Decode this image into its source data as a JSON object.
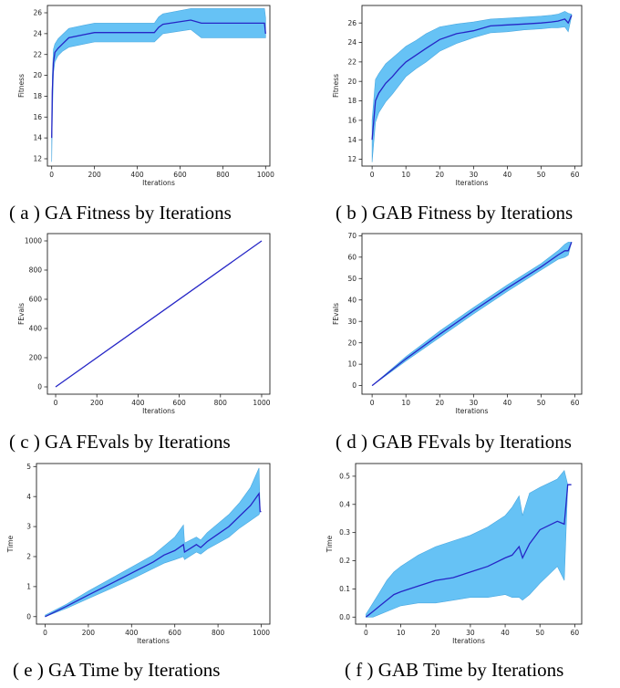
{
  "captions": {
    "a": "( a ) GA Fitness by Iterations",
    "b": "( b ) GAB Fitness by Iterations",
    "c": "( c ) GA FEvals by Iterations",
    "d": "( d ) GAB FEvals by Iterations",
    "e": "( e ) GA Time by Iterations",
    "f": "( f ) GAB Time by Iterations"
  },
  "colors": {
    "band": "#66c2f5",
    "line": "#2626c6",
    "axis": "#222222"
  },
  "chart_data": [
    {
      "id": "a",
      "type": "line",
      "xlabel": "Iterations",
      "ylabel": "Fitness",
      "xlim": [
        -20,
        1020
      ],
      "ylim": [
        11.3,
        26.7
      ],
      "xticks": [
        0,
        200,
        400,
        600,
        800,
        1000
      ],
      "yticks": [
        12,
        14,
        16,
        18,
        20,
        22,
        24,
        26
      ],
      "series": [
        {
          "x": [
            0,
            3,
            8,
            15,
            30,
            50,
            80,
            150,
            200,
            300,
            480,
            500,
            520,
            650,
            700,
            800,
            900,
            995,
            1000
          ],
          "mean": [
            14,
            18.5,
            21.2,
            22.2,
            22.6,
            23.0,
            23.6,
            23.9,
            24.1,
            24.1,
            24.1,
            24.6,
            24.9,
            25.3,
            25.0,
            25.0,
            25.0,
            25.0,
            24.0
          ],
          "upper": [
            14.5,
            20,
            22.5,
            23.0,
            23.5,
            23.9,
            24.5,
            24.8,
            25.0,
            25.0,
            25.0,
            25.6,
            25.9,
            26.4,
            26.4,
            26.4,
            26.4,
            26.4,
            25.5
          ],
          "lower": [
            11.7,
            16,
            20.2,
            21.3,
            21.9,
            22.3,
            22.7,
            23.0,
            23.2,
            23.2,
            23.2,
            23.6,
            24.0,
            24.4,
            23.6,
            23.6,
            23.6,
            23.6,
            23.6
          ]
        }
      ]
    },
    {
      "id": "b",
      "type": "line",
      "xlabel": "Iterations",
      "ylabel": "Fitness",
      "xlim": [
        -3,
        62
      ],
      "ylim": [
        11.3,
        27.8
      ],
      "xticks": [
        0,
        10,
        20,
        30,
        40,
        50,
        60
      ],
      "yticks": [
        12,
        14,
        16,
        18,
        20,
        22,
        24,
        26
      ],
      "series": [
        {
          "x": [
            0,
            1,
            2,
            4,
            6,
            8,
            10,
            13,
            16,
            20,
            25,
            30,
            35,
            40,
            45,
            50,
            53,
            55,
            57,
            58,
            59
          ],
          "mean": [
            14,
            18,
            18.8,
            19.8,
            20.5,
            21.3,
            22.0,
            22.7,
            23.4,
            24.3,
            24.9,
            25.2,
            25.7,
            25.8,
            25.9,
            26.0,
            26.1,
            26.2,
            26.4,
            26.0,
            26.8
          ],
          "upper": [
            16,
            20.2,
            20.8,
            21.8,
            22.4,
            23.0,
            23.6,
            24.2,
            24.9,
            25.6,
            25.9,
            26.1,
            26.4,
            26.5,
            26.6,
            26.7,
            26.8,
            26.9,
            27.2,
            27.0,
            26.9
          ],
          "lower": [
            11.7,
            15.8,
            16.8,
            17.9,
            18.7,
            19.6,
            20.5,
            21.3,
            22.0,
            23.1,
            23.9,
            24.5,
            25.0,
            25.1,
            25.3,
            25.4,
            25.5,
            25.5,
            25.6,
            25.1,
            26.7
          ]
        }
      ]
    },
    {
      "id": "c",
      "type": "line",
      "xlabel": "Iterations",
      "ylabel": "FEvals",
      "xlim": [
        -40,
        1040
      ],
      "ylim": [
        -50,
        1050
      ],
      "xticks": [
        0,
        200,
        400,
        600,
        800,
        1000
      ],
      "yticks": [
        0,
        200,
        400,
        600,
        800,
        1000
      ],
      "series": [
        {
          "x": [
            0,
            1000
          ],
          "mean": [
            0,
            1000
          ],
          "upper": [
            0,
            1000
          ],
          "lower": [
            0,
            1000
          ]
        }
      ]
    },
    {
      "id": "d",
      "type": "line",
      "xlabel": "Iterations",
      "ylabel": "FEvals",
      "xlim": [
        -3,
        62
      ],
      "ylim": [
        -4,
        71
      ],
      "xticks": [
        0,
        10,
        20,
        30,
        40,
        50,
        60
      ],
      "yticks": [
        0,
        10,
        20,
        30,
        40,
        50,
        60,
        70
      ],
      "series": [
        {
          "x": [
            0,
            10,
            20,
            30,
            40,
            50,
            55,
            57,
            58,
            59
          ],
          "mean": [
            0,
            12.5,
            24,
            35,
            45.5,
            55.5,
            61,
            63,
            63,
            67
          ],
          "upper": [
            0,
            13.5,
            25.5,
            36.5,
            47,
            57,
            63,
            66,
            67,
            67
          ],
          "lower": [
            0,
            11.5,
            22.5,
            33.5,
            44,
            54,
            59,
            60,
            61,
            67
          ]
        }
      ]
    },
    {
      "id": "e",
      "type": "line",
      "xlabel": "Iterations",
      "ylabel": "Time",
      "xlim": [
        -40,
        1040
      ],
      "ylim": [
        -0.25,
        5.1
      ],
      "xticks": [
        0,
        200,
        400,
        600,
        800,
        1000
      ],
      "yticks": [
        0,
        1,
        2,
        3,
        4,
        5
      ],
      "series": [
        {
          "x": [
            0,
            100,
            200,
            300,
            400,
            500,
            550,
            600,
            640,
            645,
            700,
            720,
            750,
            800,
            850,
            900,
            950,
            990,
            995,
            1000
          ],
          "mean": [
            0,
            0.35,
            0.72,
            1.08,
            1.45,
            1.82,
            2.05,
            2.2,
            2.4,
            2.15,
            2.4,
            2.3,
            2.5,
            2.75,
            3.0,
            3.35,
            3.7,
            4.1,
            3.5,
            3.5
          ],
          "upper": [
            0.05,
            0.42,
            0.85,
            1.25,
            1.65,
            2.05,
            2.35,
            2.65,
            3.05,
            2.45,
            2.65,
            2.55,
            2.8,
            3.1,
            3.4,
            3.8,
            4.3,
            4.95,
            3.5,
            3.5
          ],
          "lower": [
            0,
            0.28,
            0.6,
            0.92,
            1.25,
            1.6,
            1.78,
            1.9,
            2.0,
            1.9,
            2.15,
            2.08,
            2.25,
            2.45,
            2.65,
            2.95,
            3.2,
            3.4,
            3.5,
            3.5
          ]
        }
      ]
    },
    {
      "id": "f",
      "type": "line",
      "xlabel": "Iterations",
      "ylabel": "Time",
      "xlim": [
        -3,
        62
      ],
      "ylim": [
        -0.025,
        0.545
      ],
      "xticks": [
        0,
        10,
        20,
        30,
        40,
        50,
        60
      ],
      "yticks": [
        0,
        0.1,
        0.2,
        0.3,
        0.4,
        0.5
      ],
      "yformat": "0.0",
      "series": [
        {
          "x": [
            0,
            2,
            4,
            6,
            8,
            10,
            15,
            20,
            25,
            30,
            35,
            40,
            42,
            44,
            45,
            47,
            50,
            55,
            57,
            58,
            59
          ],
          "mean": [
            0,
            0.02,
            0.04,
            0.06,
            0.08,
            0.09,
            0.11,
            0.13,
            0.14,
            0.16,
            0.18,
            0.21,
            0.22,
            0.25,
            0.21,
            0.26,
            0.31,
            0.34,
            0.33,
            0.47,
            0.47
          ],
          "upper": [
            0.01,
            0.05,
            0.09,
            0.13,
            0.16,
            0.18,
            0.22,
            0.25,
            0.27,
            0.29,
            0.32,
            0.36,
            0.39,
            0.43,
            0.36,
            0.44,
            0.46,
            0.49,
            0.52,
            0.47,
            0.47
          ],
          "lower": [
            0,
            0.0,
            0.01,
            0.02,
            0.03,
            0.04,
            0.05,
            0.05,
            0.06,
            0.07,
            0.07,
            0.08,
            0.07,
            0.07,
            0.06,
            0.08,
            0.12,
            0.18,
            0.13,
            0.47,
            0.47
          ]
        }
      ]
    }
  ]
}
